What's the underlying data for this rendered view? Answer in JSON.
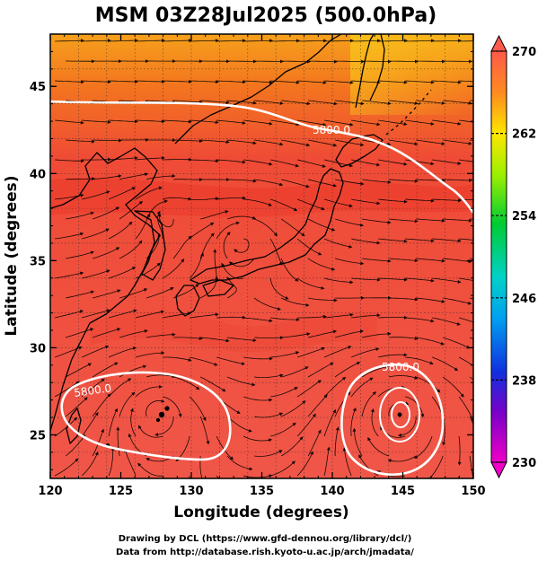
{
  "header": {
    "title": "MSM 03Z28Jul2025 (500.0hPa)"
  },
  "axes": {
    "xlabel": "Longitude (degrees)",
    "ylabel": "Latitude  (degrees)",
    "xlim": [
      120,
      150
    ],
    "ylim": [
      22.5,
      48
    ],
    "xticks": [
      "120",
      "125",
      "130",
      "135",
      "140",
      "145",
      "150"
    ],
    "yticks": [
      "25",
      "30",
      "35",
      "40",
      "45"
    ]
  },
  "colorbar": {
    "min": 230,
    "max": 270,
    "tick_labels": [
      "270",
      "262",
      "254",
      "246",
      "238",
      "230"
    ]
  },
  "contours": {
    "north_label": "5800.0",
    "southwest_label": "5800.0",
    "southeast_label": "5800.0"
  },
  "footer": {
    "line1": "Drawing by DCL (https://www.gfd-dennou.org/library/dcl/)",
    "line2": "Data from http://database.rish.kyoto-u.ac.jp/arch/jmadata/"
  },
  "colors": {
    "field_main": "#f05548",
    "field_warm": "#ee3c2c",
    "field_north": "#f56a22",
    "field_ne": "#f6a21a",
    "contour": "#ffffff",
    "coast": "#000000"
  }
}
